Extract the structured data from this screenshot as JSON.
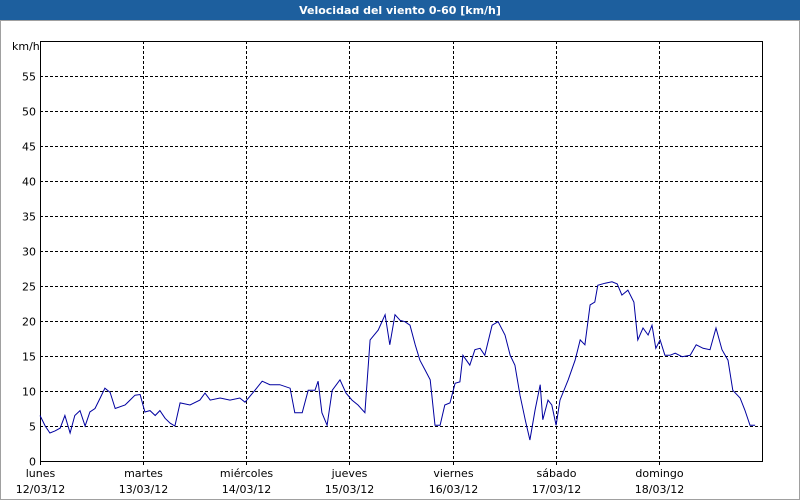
{
  "chart_data": {
    "type": "line",
    "title": "Velocidad del viento 0-60 [km/h]",
    "y_label": "km/h",
    "xlim": [
      0,
      168
    ],
    "xticks": [
      {
        "value": 0,
        "label": "lunes",
        "sublabel": "12/03/12"
      },
      {
        "value": 24,
        "label": "martes",
        "sublabel": "13/03/12"
      },
      {
        "value": 48,
        "label": "miércoles",
        "sublabel": "14/03/12"
      },
      {
        "value": 72,
        "label": "jueves",
        "sublabel": "15/03/12"
      },
      {
        "value": 96,
        "label": "viernes",
        "sublabel": "16/03/12"
      },
      {
        "value": 120,
        "label": "sábado",
        "sublabel": "17/03/12"
      },
      {
        "value": 144,
        "label": "domingo",
        "sublabel": "18/03/12"
      }
    ],
    "ylim": [
      0,
      60
    ],
    "yticks": [
      0,
      5,
      10,
      15,
      20,
      25,
      30,
      35,
      40,
      45,
      50,
      55
    ],
    "grid": true,
    "series": [
      {
        "name": "Velocidad del viento",
        "color": "#0000a0",
        "x": [
          0,
          1.2,
          2.3,
          3.5,
          4.7,
          5.8,
          7,
          8.1,
          9.3,
          10.5,
          11.6,
          12.8,
          14,
          15.1,
          16.3,
          17.5,
          19.8,
          22.1,
          23.3,
          24.4,
          25.6,
          26.8,
          27.9,
          29.1,
          30.3,
          31.4,
          32.6,
          34.9,
          37.2,
          38.4,
          39.6,
          41.9,
          44.2,
          46.5,
          47.7,
          50,
          51.7,
          53.5,
          55.8,
          58.2,
          59.3,
          61,
          62.4,
          64,
          64.7,
          65.6,
          66.8,
          68,
          69.8,
          71.2,
          72.6,
          74,
          75.6,
          76.8,
          78.7,
          80.3,
          81.4,
          82.6,
          83.8,
          84.9,
          86.1,
          87.3,
          88.4,
          89.6,
          90.8,
          91.9,
          93.1,
          94.2,
          95.4,
          96.6,
          97.7,
          98.4,
          100,
          101.2,
          102.4,
          103.5,
          105.2,
          106.6,
          108.2,
          109.4,
          110.5,
          111.7,
          112.9,
          114,
          115.2,
          116.4,
          117,
          118.2,
          119.1,
          120.1,
          121,
          122.9,
          124.5,
          125.7,
          126.8,
          128,
          129.1,
          129.8,
          131.5,
          133.1,
          134.3,
          135.4,
          136.8,
          138.2,
          139.1,
          140.3,
          141.5,
          142.4,
          143.3,
          144.3,
          145.4,
          146.6,
          147.8,
          149.4,
          151.3,
          152.7,
          154.3,
          155.9,
          157.3,
          158.7,
          160.1,
          161.2,
          162.9,
          164,
          165.2,
          166.4
        ],
        "values": [
          6.5,
          5,
          4,
          4.3,
          4.7,
          6.5,
          4,
          6.5,
          7.2,
          5,
          7,
          7.5,
          9,
          10.4,
          9.8,
          7.5,
          8,
          9.4,
          9.5,
          7,
          7.2,
          6.5,
          7.2,
          6.1,
          5.4,
          5,
          8.3,
          8,
          8.7,
          9.7,
          8.7,
          9,
          8.7,
          9,
          8.4,
          10.1,
          11.4,
          10.9,
          10.9,
          10.4,
          6.9,
          6.9,
          10.1,
          10.1,
          11.4,
          6.9,
          5.1,
          10.1,
          11.6,
          9.7,
          8.7,
          8,
          6.9,
          17.3,
          18.7,
          20.9,
          16.6,
          20.9,
          20.1,
          19.9,
          19.4,
          16.6,
          14.4,
          13,
          11.6,
          5.1,
          5.1,
          8,
          8.3,
          11.1,
          11.3,
          15.1,
          13.7,
          15.9,
          16.1,
          15.1,
          19.4,
          19.9,
          18,
          15.1,
          13.7,
          9.4,
          5.9,
          3,
          7.3,
          10.9,
          5.9,
          8.7,
          8,
          5.1,
          8.7,
          11.6,
          14.4,
          17.3,
          16.6,
          22.3,
          22.7,
          25.1,
          25.4,
          25.6,
          25.3,
          23.7,
          24.4,
          22.7,
          17.3,
          19,
          18,
          19.4,
          16.1,
          17.3,
          15.1,
          15.1,
          15.4,
          14.9,
          15.1,
          16.6,
          16.1,
          15.9,
          19,
          15.9,
          14.4,
          10.1,
          9,
          7.3,
          5.1,
          5.1
        ]
      }
    ]
  }
}
